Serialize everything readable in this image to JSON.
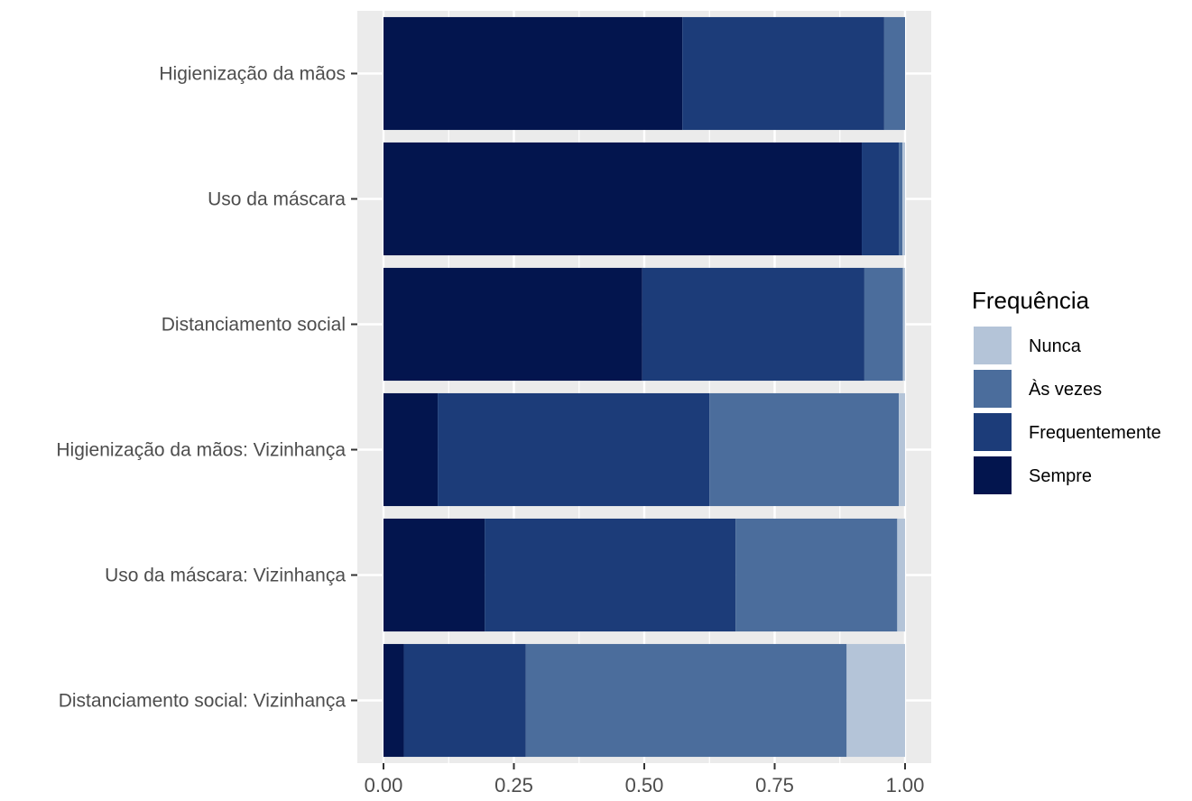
{
  "chart_data": {
    "type": "bar",
    "orientation": "horizontal",
    "stacked": true,
    "position": "fill",
    "title": "",
    "xlabel": "",
    "ylabel": "",
    "xlim": [
      0,
      1
    ],
    "x_ticks": [
      "0.00",
      "0.25",
      "0.50",
      "0.75",
      "1.00"
    ],
    "x_tick_values": [
      0,
      0.25,
      0.5,
      0.75,
      1
    ],
    "grid": true,
    "legend_position": "right",
    "categories": [
      "Higienização da mãos",
      "Uso da máscara",
      "Distanciamento social",
      "Higienização da mãos: Vizinhança",
      "Uso da máscara: Vizinhança",
      "Distanciamento social: Vizinhança"
    ],
    "series": [
      {
        "name": "Sempre",
        "color": "#03154e",
        "values": [
          0.573,
          0.917,
          0.496,
          0.104,
          0.194,
          0.039
        ]
      },
      {
        "name": "Frequentemente",
        "color": "#1c3c79",
        "values": [
          0.387,
          0.071,
          0.426,
          0.521,
          0.481,
          0.234
        ]
      },
      {
        "name": "Às vezes",
        "color": "#4b6d9c",
        "values": [
          0.04,
          0.007,
          0.074,
          0.363,
          0.31,
          0.615
        ]
      },
      {
        "name": "Nunca",
        "color": "#b4c4d8",
        "values": [
          0.0,
          0.005,
          0.004,
          0.012,
          0.015,
          0.112
        ]
      }
    ],
    "legend": {
      "title": "Frequência",
      "entries": [
        "Nunca",
        "Às vezes",
        "Frequentemente",
        "Sempre"
      ]
    }
  }
}
